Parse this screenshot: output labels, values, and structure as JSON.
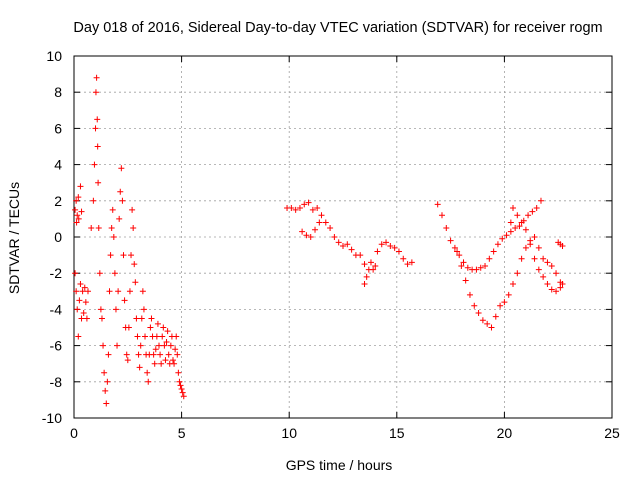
{
  "chart_data": {
    "type": "scatter",
    "title": "Day 018 of 2016, Sidereal Day-to-day VTEC variation (SDTVAR) for receiver rogm",
    "xlabel": "GPS time / hours",
    "ylabel": "SDTVAR / TECUs",
    "xlim": [
      0,
      25
    ],
    "ylim": [
      -10,
      10
    ],
    "xticks": [
      0,
      5,
      10,
      15,
      20,
      25
    ],
    "yticks": [
      -10,
      -8,
      -6,
      -4,
      -2,
      0,
      2,
      4,
      6,
      8,
      10
    ],
    "grid": true,
    "marker": "+",
    "color": "#ff0000",
    "series": [
      {
        "name": "SDTVAR",
        "points": [
          [
            0.05,
            1.5
          ],
          [
            0.1,
            2.0
          ],
          [
            0.12,
            0.8
          ],
          [
            0.15,
            1.2
          ],
          [
            0.2,
            2.2
          ],
          [
            0.22,
            1.0
          ],
          [
            0.3,
            2.8
          ],
          [
            0.35,
            1.4
          ],
          [
            0.05,
            -2.0
          ],
          [
            0.1,
            -3.0
          ],
          [
            0.15,
            -4.0
          ],
          [
            0.2,
            -5.5
          ],
          [
            0.25,
            -3.5
          ],
          [
            0.3,
            -2.6
          ],
          [
            0.35,
            -4.5
          ],
          [
            0.4,
            -3.0
          ],
          [
            0.45,
            -4.2
          ],
          [
            0.5,
            -2.8
          ],
          [
            0.55,
            -3.6
          ],
          [
            0.6,
            -4.5
          ],
          [
            0.65,
            -3.0
          ],
          [
            0.8,
            0.5
          ],
          [
            0.9,
            2.0
          ],
          [
            0.95,
            4.0
          ],
          [
            1.0,
            6.0
          ],
          [
            1.02,
            8.0
          ],
          [
            1.05,
            8.8
          ],
          [
            1.08,
            6.5
          ],
          [
            1.1,
            5.0
          ],
          [
            1.12,
            3.0
          ],
          [
            1.15,
            0.5
          ],
          [
            1.2,
            -2.0
          ],
          [
            1.25,
            -4.0
          ],
          [
            1.3,
            -4.5
          ],
          [
            1.35,
            -6.0
          ],
          [
            1.4,
            -7.5
          ],
          [
            1.45,
            -8.5
          ],
          [
            1.5,
            -9.2
          ],
          [
            1.55,
            -8.0
          ],
          [
            1.6,
            -6.5
          ],
          [
            1.65,
            -3.0
          ],
          [
            1.7,
            -1.0
          ],
          [
            1.75,
            0.5
          ],
          [
            1.8,
            1.5
          ],
          [
            1.85,
            0.0
          ],
          [
            1.9,
            -2.0
          ],
          [
            1.95,
            -4.0
          ],
          [
            2.0,
            -6.0
          ],
          [
            2.05,
            -3.0
          ],
          [
            2.1,
            1.0
          ],
          [
            2.15,
            2.5
          ],
          [
            2.2,
            3.8
          ],
          [
            2.25,
            2.0
          ],
          [
            2.3,
            -1.0
          ],
          [
            2.35,
            -3.5
          ],
          [
            2.4,
            -5.0
          ],
          [
            2.45,
            -6.5
          ],
          [
            2.5,
            -6.8
          ],
          [
            2.55,
            -5.0
          ],
          [
            2.6,
            -3.0
          ],
          [
            2.65,
            -1.0
          ],
          [
            2.7,
            1.5
          ],
          [
            2.75,
            0.5
          ],
          [
            2.8,
            -1.5
          ],
          [
            2.85,
            -2.5
          ],
          [
            2.9,
            -4.5
          ],
          [
            2.95,
            -5.5
          ],
          [
            3.0,
            -6.5
          ],
          [
            3.05,
            -7.2
          ],
          [
            3.1,
            -6.0
          ],
          [
            3.15,
            -4.5
          ],
          [
            3.2,
            -3.0
          ],
          [
            3.25,
            -4.0
          ],
          [
            3.3,
            -5.5
          ],
          [
            3.35,
            -6.5
          ],
          [
            3.4,
            -7.5
          ],
          [
            3.45,
            -8.0
          ],
          [
            3.5,
            -6.5
          ],
          [
            3.55,
            -5.0
          ],
          [
            3.6,
            -4.5
          ],
          [
            3.65,
            -5.5
          ],
          [
            3.7,
            -6.5
          ],
          [
            3.75,
            -7.0
          ],
          [
            3.8,
            -6.2
          ],
          [
            3.85,
            -5.5
          ],
          [
            3.9,
            -4.8
          ],
          [
            3.95,
            -6.0
          ],
          [
            4.0,
            -6.5
          ],
          [
            4.05,
            -7.0
          ],
          [
            4.1,
            -5.5
          ],
          [
            4.15,
            -5.0
          ],
          [
            4.2,
            -6.0
          ],
          [
            4.25,
            -6.8
          ],
          [
            4.3,
            -5.8
          ],
          [
            4.35,
            -5.2
          ],
          [
            4.4,
            -6.5
          ],
          [
            4.45,
            -7.0
          ],
          [
            4.5,
            -6.0
          ],
          [
            4.55,
            -5.5
          ],
          [
            4.6,
            -6.8
          ],
          [
            4.65,
            -7.0
          ],
          [
            4.7,
            -6.2
          ],
          [
            4.75,
            -5.5
          ],
          [
            4.8,
            -6.5
          ],
          [
            4.85,
            -7.5
          ],
          [
            4.9,
            -8.0
          ],
          [
            4.95,
            -8.2
          ],
          [
            5.0,
            -8.4
          ],
          [
            5.05,
            -8.6
          ],
          [
            5.1,
            -8.8
          ],
          [
            9.9,
            1.6
          ],
          [
            10.1,
            1.6
          ],
          [
            10.3,
            1.5
          ],
          [
            10.5,
            1.6
          ],
          [
            10.7,
            1.8
          ],
          [
            10.9,
            1.9
          ],
          [
            11.1,
            1.5
          ],
          [
            11.3,
            1.6
          ],
          [
            11.5,
            1.2
          ],
          [
            11.7,
            0.8
          ],
          [
            11.9,
            0.5
          ],
          [
            12.1,
            0.0
          ],
          [
            12.3,
            -0.3
          ],
          [
            12.5,
            -0.5
          ],
          [
            12.7,
            -0.4
          ],
          [
            12.9,
            -0.7
          ],
          [
            13.1,
            -1.0
          ],
          [
            13.3,
            -1.0
          ],
          [
            13.5,
            -1.5
          ],
          [
            10.6,
            0.3
          ],
          [
            10.8,
            0.1
          ],
          [
            11.0,
            0.0
          ],
          [
            11.2,
            0.4
          ],
          [
            11.4,
            0.8
          ],
          [
            13.5,
            -2.6
          ],
          [
            13.6,
            -2.2
          ],
          [
            13.7,
            -1.8
          ],
          [
            13.8,
            -1.4
          ],
          [
            13.9,
            -1.8
          ],
          [
            14.0,
            -1.6
          ],
          [
            14.1,
            -0.8
          ],
          [
            14.3,
            -0.4
          ],
          [
            14.5,
            -0.3
          ],
          [
            14.7,
            -0.5
          ],
          [
            14.9,
            -0.6
          ],
          [
            15.1,
            -0.8
          ],
          [
            15.3,
            -1.2
          ],
          [
            15.5,
            -1.5
          ],
          [
            15.7,
            -1.4
          ],
          [
            16.9,
            1.8
          ],
          [
            17.1,
            1.2
          ],
          [
            17.3,
            0.5
          ],
          [
            17.5,
            -0.2
          ],
          [
            17.7,
            -0.6
          ],
          [
            17.9,
            -1.0
          ],
          [
            18.1,
            -1.4
          ],
          [
            18.3,
            -1.7
          ],
          [
            18.5,
            -1.8
          ],
          [
            18.7,
            -1.8
          ],
          [
            18.9,
            -1.7
          ],
          [
            19.1,
            -1.6
          ],
          [
            19.3,
            -1.2
          ],
          [
            19.5,
            -0.8
          ],
          [
            19.7,
            -0.4
          ],
          [
            19.9,
            -0.1
          ],
          [
            20.1,
            0.1
          ],
          [
            20.3,
            0.3
          ],
          [
            20.5,
            0.5
          ],
          [
            20.7,
            0.6
          ],
          [
            20.9,
            0.9
          ],
          [
            21.1,
            1.2
          ],
          [
            21.3,
            1.4
          ],
          [
            21.5,
            1.6
          ],
          [
            21.7,
            2.0
          ],
          [
            17.8,
            -0.8
          ],
          [
            18.0,
            -1.6
          ],
          [
            18.2,
            -2.4
          ],
          [
            18.4,
            -3.2
          ],
          [
            18.6,
            -3.8
          ],
          [
            18.8,
            -4.2
          ],
          [
            19.0,
            -4.6
          ],
          [
            19.2,
            -4.8
          ],
          [
            19.4,
            -5.0
          ],
          [
            19.6,
            -4.4
          ],
          [
            19.8,
            -3.8
          ],
          [
            20.0,
            -3.6
          ],
          [
            20.2,
            -3.2
          ],
          [
            20.4,
            -2.6
          ],
          [
            20.6,
            -2.0
          ],
          [
            20.8,
            -1.2
          ],
          [
            21.0,
            -0.6
          ],
          [
            21.2,
            -0.2
          ],
          [
            21.4,
            0.0
          ],
          [
            21.6,
            -0.6
          ],
          [
            21.8,
            -1.2
          ],
          [
            22.0,
            -1.4
          ],
          [
            22.2,
            -1.6
          ],
          [
            22.4,
            -2.0
          ],
          [
            22.6,
            -2.5
          ],
          [
            22.7,
            -2.6
          ],
          [
            20.3,
            0.8
          ],
          [
            20.4,
            1.6
          ],
          [
            20.6,
            1.2
          ],
          [
            20.8,
            0.8
          ],
          [
            21.0,
            0.4
          ],
          [
            21.2,
            -0.4
          ],
          [
            21.4,
            -1.2
          ],
          [
            21.6,
            -1.8
          ],
          [
            21.8,
            -2.2
          ],
          [
            22.0,
            -2.6
          ],
          [
            22.2,
            -2.9
          ],
          [
            22.4,
            -3.0
          ],
          [
            22.6,
            -2.8
          ],
          [
            22.7,
            -2.6
          ],
          [
            22.5,
            -0.3
          ],
          [
            22.6,
            -0.4
          ],
          [
            22.7,
            -0.5
          ]
        ]
      }
    ]
  }
}
